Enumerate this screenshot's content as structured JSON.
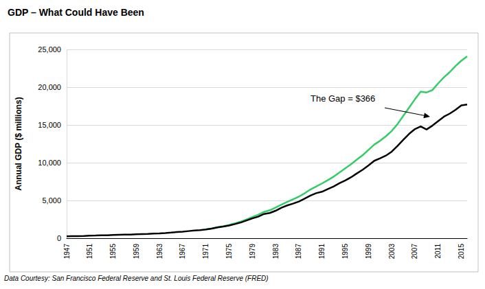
{
  "chart_data": {
    "type": "line",
    "title": "GDP – What Could Have Been",
    "y_label": "Annual GDP ($ millions)",
    "annotation": "The Gap = $366",
    "source": "Data Courtesy: San Francisco Federal Reserve and St. Louis Federal Reserve (FRED)",
    "categories": [
      "1947",
      null,
      null,
      null,
      "1951",
      null,
      null,
      null,
      "1955",
      null,
      null,
      null,
      "1959",
      null,
      null,
      null,
      "1963",
      null,
      null,
      null,
      "1967",
      null,
      null,
      null,
      "1971",
      null,
      null,
      null,
      "1975",
      null,
      null,
      null,
      "1979",
      null,
      null,
      null,
      "1983",
      null,
      null,
      null,
      "1987",
      null,
      null,
      null,
      "1991",
      null,
      null,
      null,
      "1995",
      null,
      null,
      null,
      "1999",
      null,
      null,
      null,
      "2003",
      null,
      null,
      null,
      "2007",
      null,
      null,
      null,
      "2011",
      null,
      null,
      null,
      "2015",
      null
    ],
    "series": [
      {
        "color": "#33cc66",
        "values": [
          null,
          null,
          null,
          null,
          null,
          null,
          null,
          null,
          null,
          null,
          null,
          null,
          null,
          null,
          null,
          null,
          null,
          null,
          null,
          null,
          null,
          null,
          null,
          null,
          1165,
          1290,
          1450,
          1590,
          1760,
          1970,
          2200,
          2490,
          2800,
          3100,
          3480,
          3700,
          4050,
          4450,
          4800,
          5150,
          5500,
          5950,
          6450,
          6850,
          7250,
          7700,
          8150,
          8700,
          9250,
          9800,
          10400,
          11000,
          11700,
          12400,
          12900,
          13500,
          14200,
          15100,
          16200,
          17300,
          18400,
          19400,
          19300,
          19600,
          20500,
          21300,
          22000,
          22800,
          23500,
          24100
        ]
      },
      {
        "color": "#000000",
        "values": [
          244,
          269,
          272,
          300,
          347,
          367,
          389,
          391,
          426,
          450,
          474,
          481,
          522,
          543,
          563,
          605,
          638,
          686,
          743,
          815,
          862,
          943,
          1019,
          1073,
          1165,
          1280,
          1425,
          1545,
          1684,
          1873,
          2082,
          2352,
          2627,
          2857,
          3207,
          3343,
          3634,
          4037,
          4339,
          4580,
          4855,
          5236,
          5642,
          5963,
          6158,
          6520,
          6859,
          7287,
          7640,
          8073,
          8578,
          9063,
          9631,
          10252,
          10582,
          10936,
          11458,
          12214,
          13037,
          13815,
          14452,
          14800,
          14400,
          14900,
          15500,
          16100,
          16500,
          17000,
          17600,
          17700
        ]
      }
    ],
    "ylim": [
      0,
      25000
    ],
    "yticks": [
      0,
      {
        "value": 5000,
        "label": "5,000"
      },
      {
        "value": 10000,
        "label": "10,000"
      },
      {
        "value": 15000,
        "label": "15,000"
      },
      {
        "value": 20000,
        "label": "20,000"
      },
      {
        "value": 25000,
        "label": "25,000"
      }
    ],
    "grid": true
  }
}
